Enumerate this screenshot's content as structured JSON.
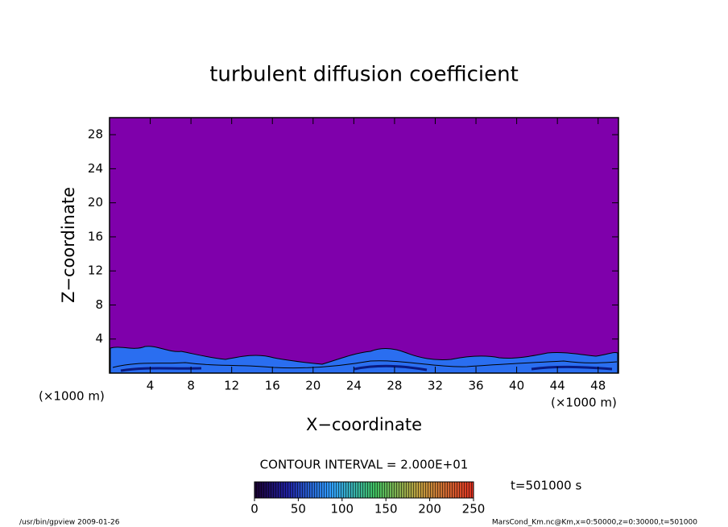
{
  "chart_data": {
    "type": "contour",
    "title": "turbulent diffusion coefficient",
    "xlabel": "X−coordinate",
    "ylabel": "Z−coordinate",
    "axis_unit": "(×1000 m)",
    "xlim": [
      0,
      50
    ],
    "xticks": [
      4,
      8,
      12,
      16,
      20,
      24,
      28,
      32,
      36,
      40,
      44,
      48
    ],
    "ylim": [
      0,
      30
    ],
    "yticks": [
      4,
      8,
      12,
      16,
      20,
      24,
      28
    ],
    "field_color": "#7f00ab",
    "colorbar": {
      "lim": [
        0,
        250
      ],
      "ticks": [
        0,
        50,
        100,
        150,
        200,
        250
      ]
    },
    "contour_interval": "CONTOUR INTERVAL = 2.000E+01",
    "time": "t=501000 s",
    "footer_left": "/usr/bin/gpview  2009-01-26",
    "footer_right": "MarsCond_Km.nc@Km,x=0:50000,z=0:30000,t=501000"
  }
}
